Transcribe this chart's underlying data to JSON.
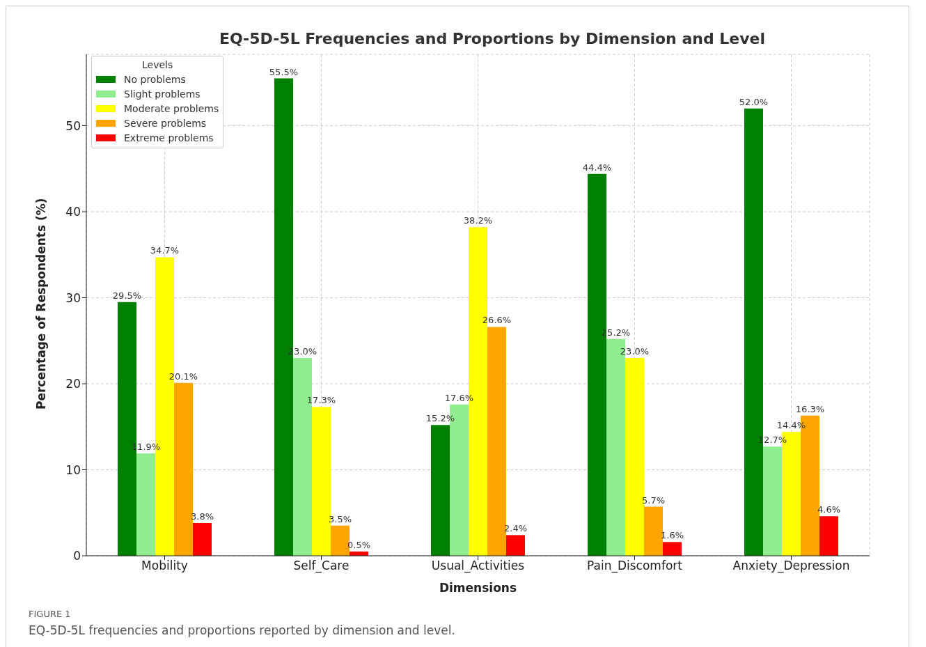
{
  "chart_data": {
    "type": "bar",
    "title": "EQ-5D-5L Frequencies and Proportions by Dimension and Level",
    "xlabel": "Dimensions",
    "ylabel": "Percentage of Respondents (%)",
    "legend_title": "Levels",
    "legend": "top left",
    "grid": true,
    "categories": [
      "Mobility",
      "Self_Care",
      "Usual_Activities",
      "Pain_Discomfort",
      "Anxiety_Depression"
    ],
    "ylim": [
      0,
      58.3
    ],
    "yticks": [
      0,
      10,
      20,
      30,
      40,
      50
    ],
    "series": [
      {
        "name": "No problems",
        "color": "#008000",
        "values": [
          29.5,
          55.5,
          15.2,
          44.4,
          52.0
        ],
        "value_labels": [
          "29.5%",
          "55.5%",
          "15.2%",
          "44.4%",
          "52.0%"
        ]
      },
      {
        "name": "Slight problems",
        "color": "#90ee90",
        "values": [
          11.9,
          23.0,
          17.6,
          25.2,
          12.7
        ],
        "value_labels": [
          "11.9%",
          "23.0%",
          "17.6%",
          "25.2%",
          "12.7%"
        ]
      },
      {
        "name": "Moderate problems",
        "color": "#ffff00",
        "values": [
          34.7,
          17.3,
          38.2,
          23.0,
          14.4
        ],
        "value_labels": [
          "34.7%",
          "17.3%",
          "38.2%",
          "23.0%",
          "14.4%"
        ]
      },
      {
        "name": "Severe problems",
        "color": "#ffa500",
        "values": [
          20.1,
          3.5,
          26.6,
          5.7,
          16.3
        ],
        "value_labels": [
          "20.1%",
          "3.5%",
          "26.6%",
          "5.7%",
          "16.3%"
        ]
      },
      {
        "name": "Extreme problems",
        "color": "#ff0000",
        "values": [
          3.8,
          0.5,
          2.4,
          1.6,
          4.6
        ],
        "value_labels": [
          "3.8%",
          "0.5%",
          "2.4%",
          "1.6%",
          "4.6%"
        ]
      }
    ],
    "annotations": [
      "FIGURE 1",
      "EQ-5D-5L frequencies and proportions reported by dimension and level."
    ]
  }
}
